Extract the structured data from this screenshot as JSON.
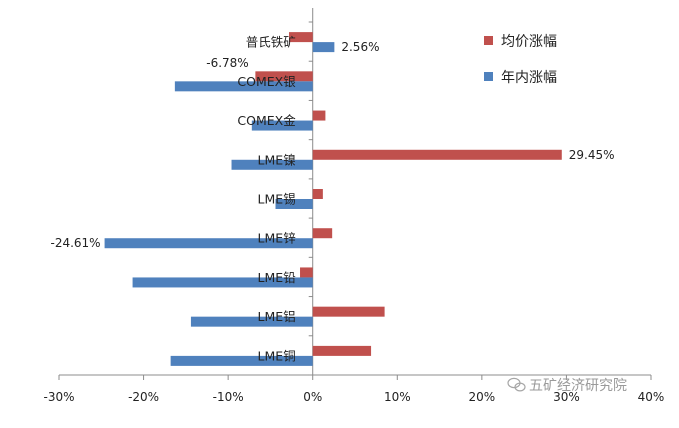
{
  "chart_data": {
    "type": "bar",
    "orientation": "horizontal",
    "categories": [
      "普氏铁矿",
      "COMEX银",
      "COMEX金",
      "LME镍",
      "LME锡",
      "LME锌",
      "LME铅",
      "LME铝",
      "LME铜"
    ],
    "series": [
      {
        "name": "均价涨幅",
        "color": "#C0504D",
        "values": [
          -2.8,
          -6.78,
          1.5,
          29.45,
          1.2,
          2.3,
          -1.5,
          8.5,
          6.9
        ]
      },
      {
        "name": "年内涨幅",
        "color": "#4F81BD",
        "values": [
          2.56,
          -16.3,
          -7.2,
          -9.6,
          -4.4,
          -24.61,
          -21.3,
          -14.4,
          -16.8
        ]
      }
    ],
    "data_labels": [
      {
        "category": "普氏铁矿",
        "series": "年内涨幅",
        "text": "2.56%"
      },
      {
        "category": "COMEX银",
        "series": "均价涨幅",
        "text": "-6.78%"
      },
      {
        "category": "LME镍",
        "series": "均价涨幅",
        "text": "29.45%"
      },
      {
        "category": "LME锌",
        "series": "年内涨幅",
        "text": "-24.61%"
      }
    ],
    "xlim": [
      -30,
      40
    ],
    "ticks": [
      -30,
      -20,
      -10,
      0,
      10,
      20,
      30,
      40
    ],
    "tick_labels": [
      "-30%",
      "-20%",
      "-10%",
      "0%",
      "10%",
      "20%",
      "30%",
      "40%"
    ],
    "title": "",
    "xlabel": "",
    "ylabel": "",
    "grid": false,
    "legend_position": "top-right"
  },
  "watermark": {
    "text": "五矿经济研究院",
    "icon": "wechat-icon"
  }
}
